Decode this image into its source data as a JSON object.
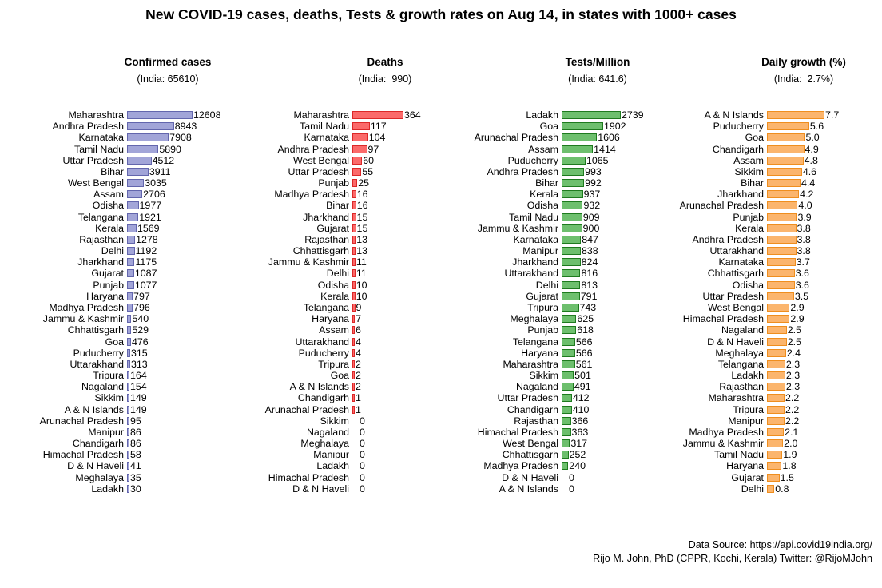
{
  "title": "New COVID-19 cases, deaths, Tests & growth rates on Aug 14, in states with 1000+ cases",
  "footer": {
    "line1": "Data Source: https://api.covid19india.org/",
    "line2": "Rijo M. John, PhD (CPPR, Kochi, Kerala) Twitter: @RijoMJohn"
  },
  "chart_data": [
    {
      "type": "bar",
      "orientation": "horizontal",
      "title": "Confirmed cases",
      "subtitle": "(India: 65610)",
      "fill": "#a2a5d8",
      "border": "#6366ad",
      "categories": [
        "Maharashtra",
        "Andhra Pradesh",
        "Karnataka",
        "Tamil Nadu",
        "Uttar Pradesh",
        "Bihar",
        "West Bengal",
        "Assam",
        "Odisha",
        "Telangana",
        "Kerala",
        "Rajasthan",
        "Delhi",
        "Jharkhand",
        "Gujarat",
        "Punjab",
        "Haryana",
        "Madhya Pradesh",
        "Jammu & Kashmir",
        "Chhattisgarh",
        "Goa",
        "Puducherry",
        "Uttarakhand",
        "Tripura",
        "Nagaland",
        "Sikkim",
        "A & N Islands",
        "Arunachal Pradesh",
        "Manipur",
        "Chandigarh",
        "Himachal Pradesh",
        "D & N Haveli",
        "Meghalaya",
        "Ladakh"
      ],
      "values": [
        12608,
        8943,
        7908,
        5890,
        4512,
        3911,
        3035,
        2706,
        1977,
        1921,
        1569,
        1278,
        1192,
        1175,
        1087,
        1077,
        797,
        796,
        540,
        529,
        476,
        315,
        313,
        164,
        154,
        149,
        149,
        95,
        86,
        86,
        58,
        41,
        35,
        30
      ]
    },
    {
      "type": "bar",
      "orientation": "horizontal",
      "title": "Deaths",
      "subtitle": "(India:  990)",
      "fill": "#fb6a6a",
      "border": "#dc2828",
      "categories": [
        "Maharashtra",
        "Tamil Nadu",
        "Karnataka",
        "Andhra Pradesh",
        "West Bengal",
        "Uttar Pradesh",
        "Punjab",
        "Madhya Pradesh",
        "Bihar",
        "Jharkhand",
        "Gujarat",
        "Rajasthan",
        "Chhattisgarh",
        "Jammu & Kashmir",
        "Delhi",
        "Odisha",
        "Kerala",
        "Telangana",
        "Haryana",
        "Assam",
        "Uttarakhand",
        "Puducherry",
        "Tripura",
        "Goa",
        "A & N Islands",
        "Chandigarh",
        "Arunachal Pradesh",
        "Sikkim",
        "Nagaland",
        "Meghalaya",
        "Manipur",
        "Ladakh",
        "Himachal Pradesh",
        "D & N Haveli"
      ],
      "values": [
        364,
        117,
        104,
        97,
        60,
        55,
        25,
        16,
        16,
        15,
        15,
        13,
        13,
        11,
        11,
        10,
        10,
        9,
        7,
        6,
        4,
        4,
        2,
        2,
        2,
        1,
        1,
        0,
        0,
        0,
        0,
        0,
        0,
        0
      ]
    },
    {
      "type": "bar",
      "orientation": "horizontal",
      "title": "Tests/Million",
      "subtitle": "(India: 641.6)",
      "fill": "#6dbf6d",
      "border": "#1e7a1e",
      "categories": [
        "Ladakh",
        "Goa",
        "Arunachal Pradesh",
        "Assam",
        "Puducherry",
        "Andhra Pradesh",
        "Bihar",
        "Kerala",
        "Odisha",
        "Tamil Nadu",
        "Jammu & Kashmir",
        "Karnataka",
        "Manipur",
        "Jharkhand",
        "Uttarakhand",
        "Delhi",
        "Gujarat",
        "Tripura",
        "Meghalaya",
        "Punjab",
        "Telangana",
        "Haryana",
        "Maharashtra",
        "Sikkim",
        "Nagaland",
        "Uttar Pradesh",
        "Chandigarh",
        "Rajasthan",
        "Himachal Pradesh",
        "West Bengal",
        "Chhattisgarh",
        "Madhya Pradesh",
        "D & N Haveli",
        "A & N Islands"
      ],
      "values": [
        2739,
        1902,
        1606,
        1414,
        1065,
        993,
        992,
        937,
        932,
        909,
        900,
        847,
        838,
        824,
        816,
        813,
        791,
        743,
        625,
        618,
        566,
        566,
        561,
        501,
        491,
        412,
        410,
        366,
        363,
        317,
        252,
        240,
        0,
        0
      ]
    },
    {
      "type": "bar",
      "orientation": "horizontal",
      "title": "Daily growth (%)",
      "subtitle": "(India:  2.7%)",
      "fill": "#fbb56d",
      "border": "#ef8e1e",
      "categories": [
        "A & N Islands",
        "Puducherry",
        "Goa",
        "Chandigarh",
        "Assam",
        "Sikkim",
        "Bihar",
        "Jharkhand",
        "Arunachal Pradesh",
        "Punjab",
        "Kerala",
        "Andhra Pradesh",
        "Uttarakhand",
        "Karnataka",
        "Chhattisgarh",
        "Odisha",
        "Uttar Pradesh",
        "West Bengal",
        "Himachal Pradesh",
        "Nagaland",
        "D & N Haveli",
        "Meghalaya",
        "Telangana",
        "Ladakh",
        "Rajasthan",
        "Maharashtra",
        "Tripura",
        "Manipur",
        "Madhya Pradesh",
        "Jammu & Kashmir",
        "Tamil Nadu",
        "Haryana",
        "Gujarat",
        "Delhi"
      ],
      "values": [
        7.7,
        5.6,
        5.0,
        4.9,
        4.8,
        4.6,
        4.4,
        4.2,
        4.0,
        3.9,
        3.8,
        3.8,
        3.8,
        3.7,
        3.6,
        3.6,
        3.5,
        2.9,
        2.9,
        2.5,
        2.5,
        2.4,
        2.3,
        2.3,
        2.3,
        2.2,
        2.2,
        2.2,
        2.1,
        2.0,
        1.9,
        1.8,
        1.5,
        0.8
      ],
      "value_labels": [
        "7.7",
        "5.6",
        "5.0",
        "4.9",
        "4.8",
        "4.6",
        "4.4",
        "4.2",
        "4.0",
        "3.9",
        "3.8",
        "3.8",
        "3.8",
        "3.7",
        "3.6",
        "3.6",
        "3.5",
        "2.9",
        "2.9",
        "2.5",
        "2.5",
        "2.4",
        "2.3",
        "2.3",
        "2.3",
        "2.2",
        "2.2",
        "2.2",
        "2.1",
        "2.0",
        "1.9",
        "1.8",
        "1.5",
        "0.8"
      ]
    }
  ]
}
